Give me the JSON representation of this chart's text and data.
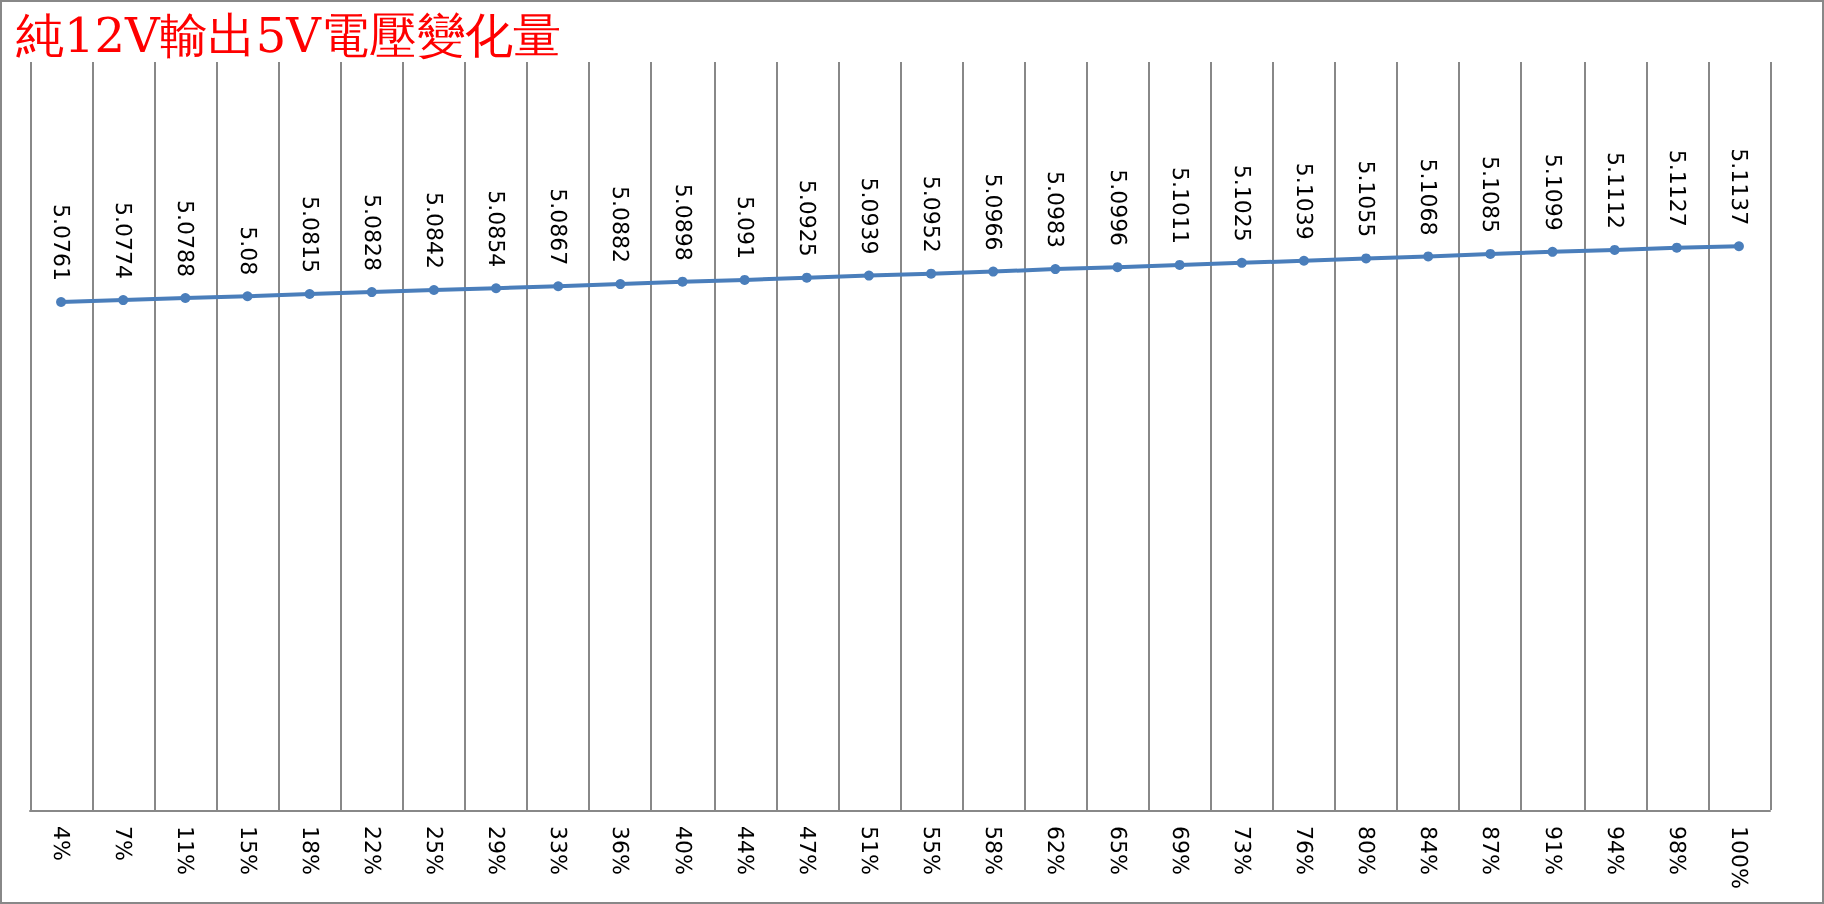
{
  "chart_data": {
    "type": "line",
    "title": "純12V輸出5V電壓變化量",
    "categories": [
      "4%",
      "7%",
      "11%",
      "15%",
      "18%",
      "22%",
      "25%",
      "29%",
      "33%",
      "36%",
      "40%",
      "44%",
      "47%",
      "51%",
      "55%",
      "58%",
      "62%",
      "65%",
      "69%",
      "73%",
      "76%",
      "80%",
      "84%",
      "87%",
      "91%",
      "94%",
      "98%",
      "100%"
    ],
    "series": [
      {
        "color": "#4a7ebb",
        "values": [
          5.0761,
          5.0774,
          5.0788,
          5.08,
          5.0815,
          5.0828,
          5.0842,
          5.0854,
          5.0867,
          5.0882,
          5.0898,
          5.091,
          5.0925,
          5.0939,
          5.0952,
          5.0966,
          5.0983,
          5.0996,
          5.1011,
          5.1025,
          5.1039,
          5.1055,
          5.1068,
          5.1085,
          5.1099,
          5.1112,
          5.1127,
          5.1137
        ]
      }
    ],
    "data_labels": true,
    "marker": "circle",
    "grid": "x"
  }
}
